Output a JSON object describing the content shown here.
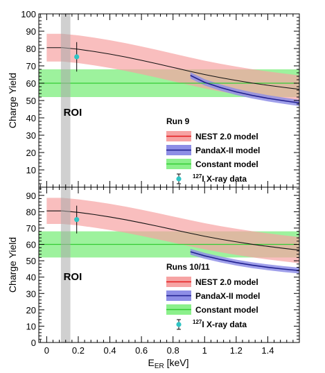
{
  "chart_data": [
    {
      "type": "line",
      "ylabel": "Charge Yield",
      "xlim": [
        -0.05,
        1.6
      ],
      "ylim": [
        0,
        100
      ],
      "yticks": [
        10,
        20,
        30,
        40,
        50,
        60,
        70,
        80,
        90,
        100
      ],
      "roi": {
        "label": "ROI",
        "x_range": [
          0.09,
          0.15
        ]
      },
      "legend_header": "Run 9",
      "legend_position": "bottom-right",
      "series": [
        {
          "name": "NEST 2.0 model",
          "kind": "band_line",
          "color": "#e31a1c",
          "band_color": "#f6a3a3",
          "x": [
            0.0,
            0.1,
            0.2,
            0.3,
            0.4,
            0.5,
            0.6,
            0.7,
            0.8,
            0.9,
            1.0,
            1.1,
            1.2,
            1.3,
            1.4,
            1.5,
            1.6
          ],
          "y": [
            80.5,
            80.5,
            79.6,
            78.3,
            76.8,
            75.1,
            73.2,
            71.2,
            69.1,
            67.0,
            65.0,
            63.2,
            61.6,
            60.1,
            58.8,
            57.6,
            56.5
          ],
          "band": 8
        },
        {
          "name": "PandaX-II model",
          "kind": "band_line",
          "color": "#1f1f8f",
          "band_color": "#8e8ee6",
          "x": [
            0.91,
            1.0,
            1.1,
            1.2,
            1.3,
            1.4,
            1.5,
            1.6
          ],
          "y": [
            64.5,
            60.5,
            57.5,
            55.0,
            53.0,
            51.3,
            49.9,
            48.6
          ],
          "band": 1.8
        },
        {
          "name": "Constant model",
          "kind": "constant",
          "color": "#33cc33",
          "band_color": "#8cf08c",
          "value": 60,
          "band": 8
        },
        {
          "name": "X-ray data",
          "kind": "point",
          "color": "#2fc4c4",
          "superscript": "127",
          "element": "I",
          "x": 0.19,
          "y": 75.2,
          "err": 8.5
        }
      ]
    },
    {
      "type": "line",
      "ylabel": "Charge Yield",
      "xlabel_main": "E",
      "xlabel_sub": "ER",
      "xlabel_unit": " [keV]",
      "xlim": [
        -0.05,
        1.6
      ],
      "ylim": [
        0,
        95
      ],
      "yticks": [
        0,
        10,
        20,
        30,
        40,
        50,
        60,
        70,
        80,
        90
      ],
      "xticks": [
        0,
        0.2,
        0.4,
        0.6,
        0.8,
        1,
        1.2,
        1.4
      ],
      "xtick_labels": [
        "0",
        "0.2",
        "0.4",
        "0.6",
        "0.8",
        "1",
        "1.2",
        "1.4"
      ],
      "roi": {
        "label": "ROI",
        "x_range": [
          0.09,
          0.15
        ]
      },
      "legend_header": "Runs 10/11",
      "legend_position": "bottom-right",
      "series": [
        {
          "name": "NEST 2.0 model",
          "kind": "band_line",
          "color": "#e31a1c",
          "band_color": "#f6a3a3",
          "x": [
            0.0,
            0.1,
            0.2,
            0.3,
            0.4,
            0.5,
            0.6,
            0.7,
            0.8,
            0.9,
            1.0,
            1.1,
            1.2,
            1.3,
            1.4,
            1.5,
            1.6
          ],
          "y": [
            80.5,
            80.5,
            79.6,
            78.3,
            76.8,
            75.1,
            73.2,
            71.2,
            69.1,
            67.0,
            65.0,
            63.2,
            61.6,
            60.1,
            58.8,
            57.6,
            56.5
          ],
          "band": 8
        },
        {
          "name": "PandaX-II model",
          "kind": "band_line",
          "color": "#1f1f8f",
          "band_color": "#8e8ee6",
          "x": [
            0.91,
            1.0,
            1.1,
            1.2,
            1.3,
            1.4,
            1.5,
            1.6
          ],
          "y": [
            55.5,
            53.0,
            50.8,
            48.9,
            47.3,
            46.0,
            44.9,
            44.0
          ],
          "band": 1.8
        },
        {
          "name": "Constant model",
          "kind": "constant",
          "color": "#33cc33",
          "band_color": "#8cf08c",
          "value": 60,
          "band": 8
        },
        {
          "name": "X-ray data",
          "kind": "point",
          "color": "#2fc4c4",
          "superscript": "127",
          "element": "I",
          "x": 0.19,
          "y": 75.2,
          "err": 8.5
        }
      ]
    }
  ]
}
